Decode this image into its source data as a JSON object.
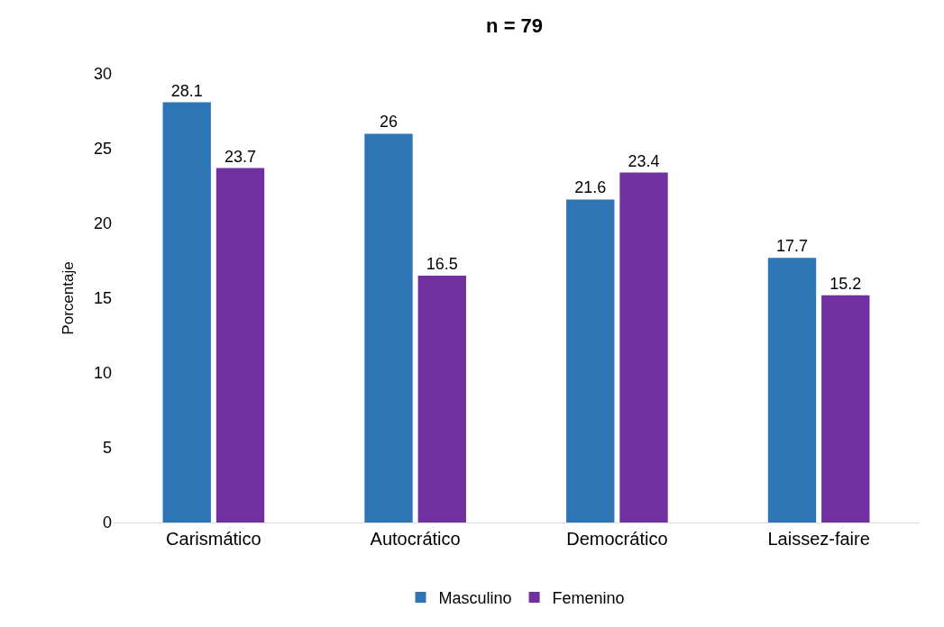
{
  "chart_data": {
    "type": "bar",
    "title": "n = 79",
    "ylabel": "Porcentaje",
    "categories": [
      "Carismático",
      "Autocrático",
      "Democrático",
      "Laissez-faire"
    ],
    "series": [
      {
        "name": "Masculino",
        "color": "#2e75b6",
        "values": [
          28.1,
          26,
          21.6,
          17.7
        ]
      },
      {
        "name": "Femenino",
        "color": "#7030a0",
        "values": [
          23.7,
          16.5,
          23.4,
          15.2
        ]
      }
    ],
    "ylim": [
      0,
      30
    ],
    "yticks": [
      0,
      5,
      10,
      15,
      20,
      25,
      30
    ],
    "grid": false,
    "legend": "bottom",
    "data_labels": true
  }
}
